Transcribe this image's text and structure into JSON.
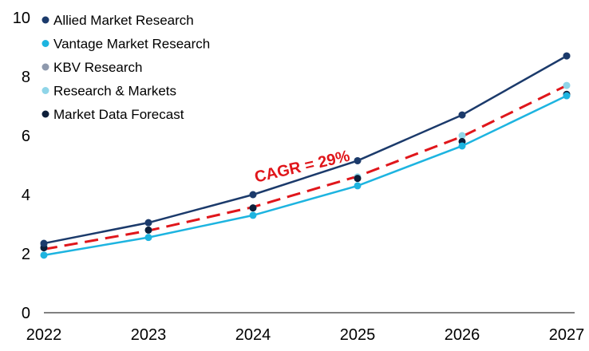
{
  "chart_data": {
    "type": "line",
    "x": [
      "2022",
      "2023",
      "2024",
      "2025",
      "2026",
      "2027"
    ],
    "ylim": [
      0,
      10
    ],
    "yticks": [
      0,
      2,
      4,
      6,
      8,
      10
    ],
    "grid": false,
    "legend_position": "top-left",
    "series": [
      {
        "name": "Allied Market Research",
        "color": "#1b3a6b",
        "marker_color": "#1b3a6b",
        "values": [
          2.35,
          3.05,
          4.0,
          5.15,
          6.7,
          8.7
        ]
      },
      {
        "name": "Vantage Market Research",
        "color": "#1db4e0",
        "marker_color": "#1db4e0",
        "values": [
          1.95,
          2.55,
          3.3,
          4.3,
          5.65,
          7.35
        ]
      },
      {
        "name": "KBV Research",
        "color": "#8e99ad",
        "marker_color": "#8e99ad",
        "values": [
          2.3,
          3.05,
          4.0,
          5.15,
          6.7,
          8.7
        ]
      },
      {
        "name": "Research & Markets",
        "color": "#8fd5e8",
        "marker_color": "#8fd5e8",
        "values": [
          2.2,
          2.8,
          3.55,
          4.6,
          6.0,
          7.7
        ]
      },
      {
        "name": "Market Data Forecast",
        "color": "#0d1f3a",
        "marker_color": "#0d1f3a",
        "values": [
          2.2,
          2.8,
          3.55,
          4.55,
          5.8,
          7.4
        ]
      }
    ],
    "trend": {
      "label": "CAGR = 29%",
      "color": "#e0161b",
      "values": [
        2.15,
        2.78,
        3.58,
        4.62,
        5.97,
        7.7
      ]
    }
  }
}
